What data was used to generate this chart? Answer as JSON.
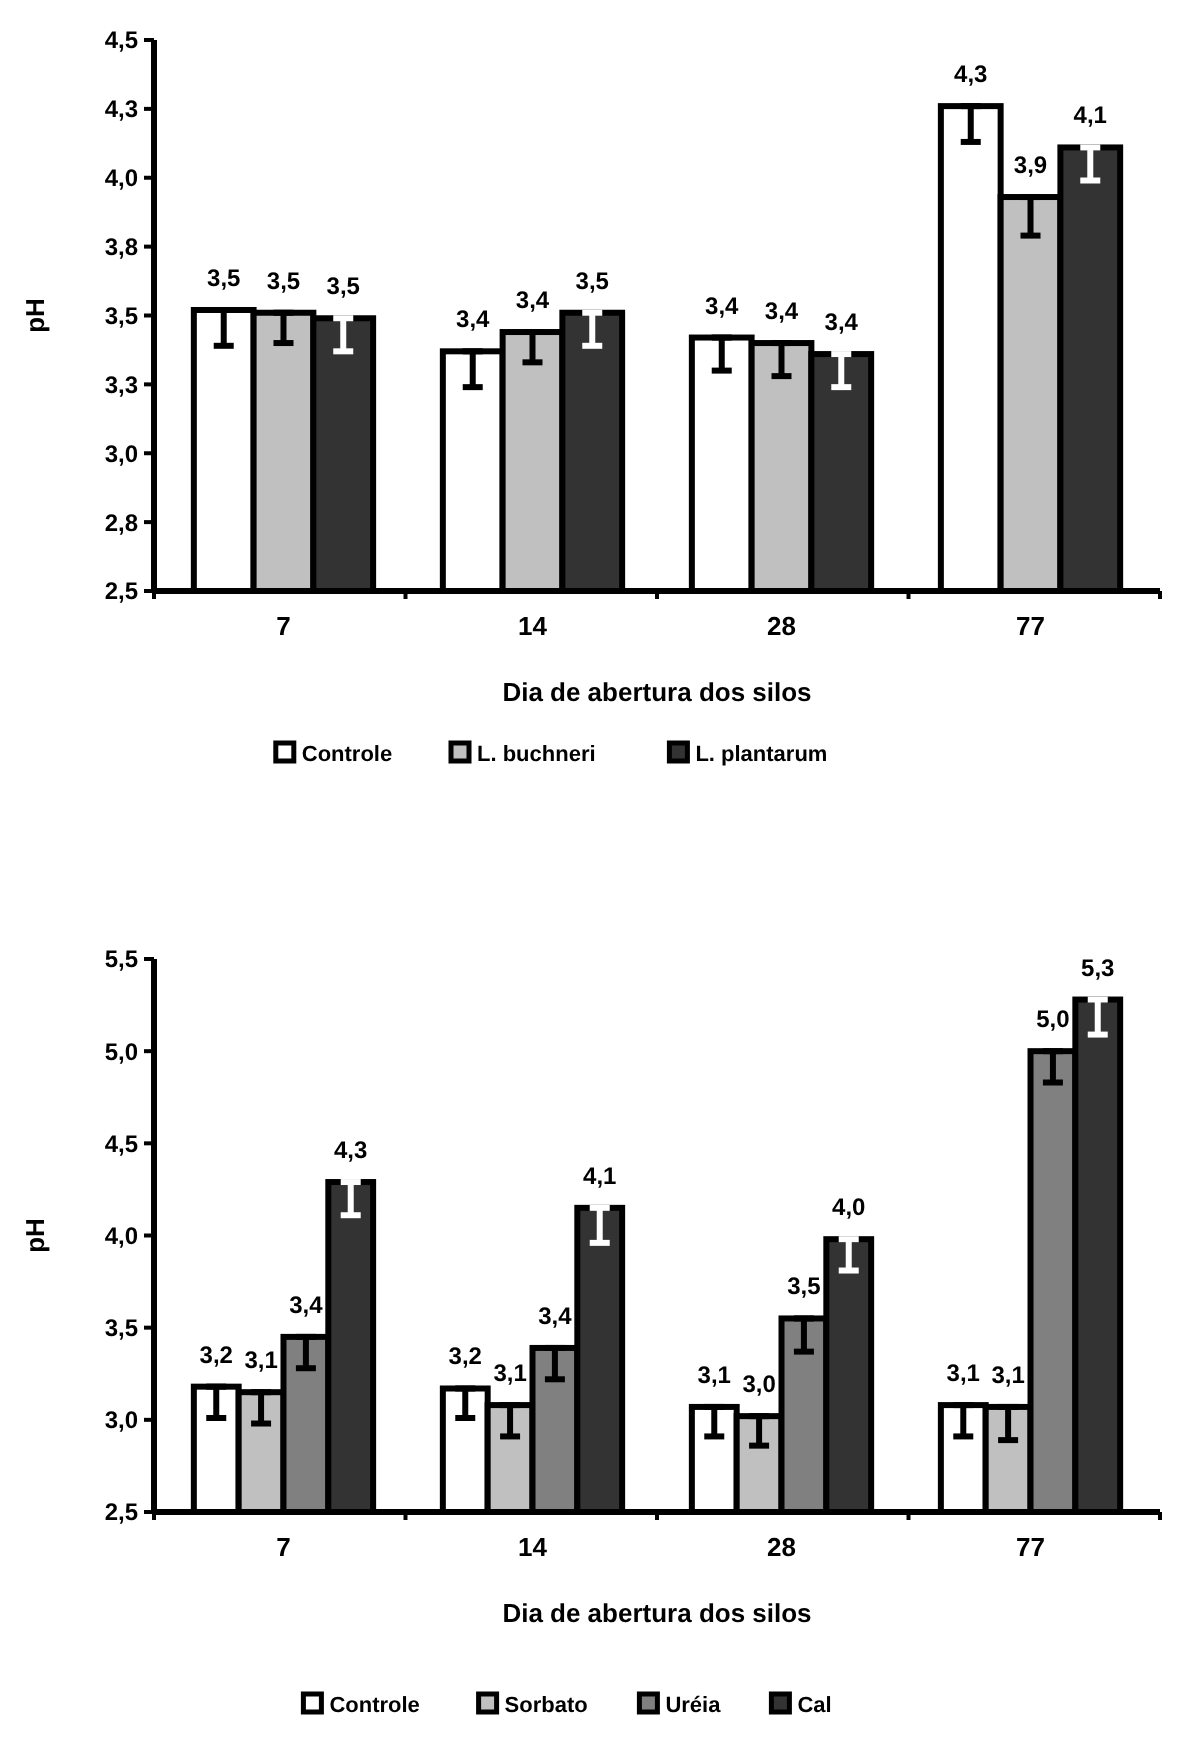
{
  "chart_data": [
    {
      "type": "bar",
      "xlabel": "Dia de abertura dos silos",
      "ylabel": "pH",
      "categories": [
        "7",
        "14",
        "28",
        "77"
      ],
      "ylim": [
        2.5,
        4.5
      ],
      "yticks": [
        {
          "value": 2.5,
          "label": "2,5"
        },
        {
          "value": 2.75,
          "label": "2,8"
        },
        {
          "value": 3.0,
          "label": "3,0"
        },
        {
          "value": 3.25,
          "label": "3,3"
        },
        {
          "value": 3.5,
          "label": "3,5"
        },
        {
          "value": 3.75,
          "label": "3,8"
        },
        {
          "value": 4.0,
          "label": "4,0"
        },
        {
          "value": 4.25,
          "label": "4,3"
        },
        {
          "value": 4.5,
          "label": "4,5"
        }
      ],
      "legend": "bottom",
      "grid": false,
      "series": [
        {
          "name": "Controle",
          "color": "#ffffff",
          "values": [
            3.52,
            3.37,
            3.42,
            4.26
          ],
          "value_labels": [
            "3,5",
            "3,4",
            "3,4",
            "4,3"
          ],
          "errors": [
            [
              3.39,
              3.52
            ],
            [
              3.24,
              3.37
            ],
            [
              3.3,
              3.42
            ],
            [
              4.13,
              4.26
            ]
          ]
        },
        {
          "name": "L. buchneri",
          "color": "#c0c0c0",
          "values": [
            3.51,
            3.44,
            3.4,
            3.93
          ],
          "value_labels": [
            "3,5",
            "3,4",
            "3,4",
            "3,9"
          ],
          "errors": [
            [
              3.4,
              3.51
            ],
            [
              3.33,
              3.44
            ],
            [
              3.28,
              3.4
            ],
            [
              3.79,
              3.93
            ]
          ]
        },
        {
          "name": "L. plantarum",
          "color": "#333333",
          "values": [
            3.49,
            3.51,
            3.36,
            4.11
          ],
          "value_labels": [
            "3,5",
            "3,5",
            "3,4",
            "4,1"
          ],
          "errors": [
            [
              3.37,
              3.49
            ],
            [
              3.39,
              3.51
            ],
            [
              3.24,
              3.36
            ],
            [
              3.99,
              4.11
            ]
          ]
        }
      ]
    },
    {
      "type": "bar",
      "xlabel": "Dia de abertura dos silos",
      "ylabel": "pH",
      "categories": [
        "7",
        "14",
        "28",
        "77"
      ],
      "ylim": [
        2.5,
        5.5
      ],
      "yticks": [
        {
          "value": 2.5,
          "label": "2,5"
        },
        {
          "value": 3.0,
          "label": "3,0"
        },
        {
          "value": 3.5,
          "label": "3,5"
        },
        {
          "value": 4.0,
          "label": "4,0"
        },
        {
          "value": 4.5,
          "label": "4,5"
        },
        {
          "value": 5.0,
          "label": "5,0"
        },
        {
          "value": 5.5,
          "label": "5,5"
        }
      ],
      "legend": "bottom",
      "grid": false,
      "series": [
        {
          "name": "Controle",
          "color": "#ffffff",
          "values": [
            3.18,
            3.17,
            3.07,
            3.08
          ],
          "value_labels": [
            "3,2",
            "3,2",
            "3,1",
            "3,1"
          ],
          "errors": [
            [
              3.01,
              3.18
            ],
            [
              3.01,
              3.17
            ],
            [
              2.91,
              3.07
            ],
            [
              2.91,
              3.08
            ]
          ]
        },
        {
          "name": "Sorbato",
          "color": "#c0c0c0",
          "values": [
            3.15,
            3.08,
            3.02,
            3.07
          ],
          "value_labels": [
            "3,1",
            "3,1",
            "3,0",
            "3,1"
          ],
          "errors": [
            [
              2.98,
              3.15
            ],
            [
              2.91,
              3.08
            ],
            [
              2.86,
              3.02
            ],
            [
              2.89,
              3.07
            ]
          ]
        },
        {
          "name": "Uréia",
          "color": "#808080",
          "values": [
            3.45,
            3.39,
            3.55,
            5.0
          ],
          "value_labels": [
            "3,4",
            "3,4",
            "3,5",
            "5,0"
          ],
          "errors": [
            [
              3.28,
              3.45
            ],
            [
              3.22,
              3.39
            ],
            [
              3.37,
              3.55
            ],
            [
              4.83,
              5.0
            ]
          ]
        },
        {
          "name": "Cal",
          "color": "#333333",
          "values": [
            4.29,
            4.15,
            3.98,
            5.28
          ],
          "value_labels": [
            "4,3",
            "4,1",
            "4,0",
            "5,3"
          ],
          "errors": [
            [
              4.11,
              4.29
            ],
            [
              3.96,
              4.15
            ],
            [
              3.81,
              3.98
            ],
            [
              5.09,
              5.28
            ]
          ]
        }
      ]
    }
  ]
}
